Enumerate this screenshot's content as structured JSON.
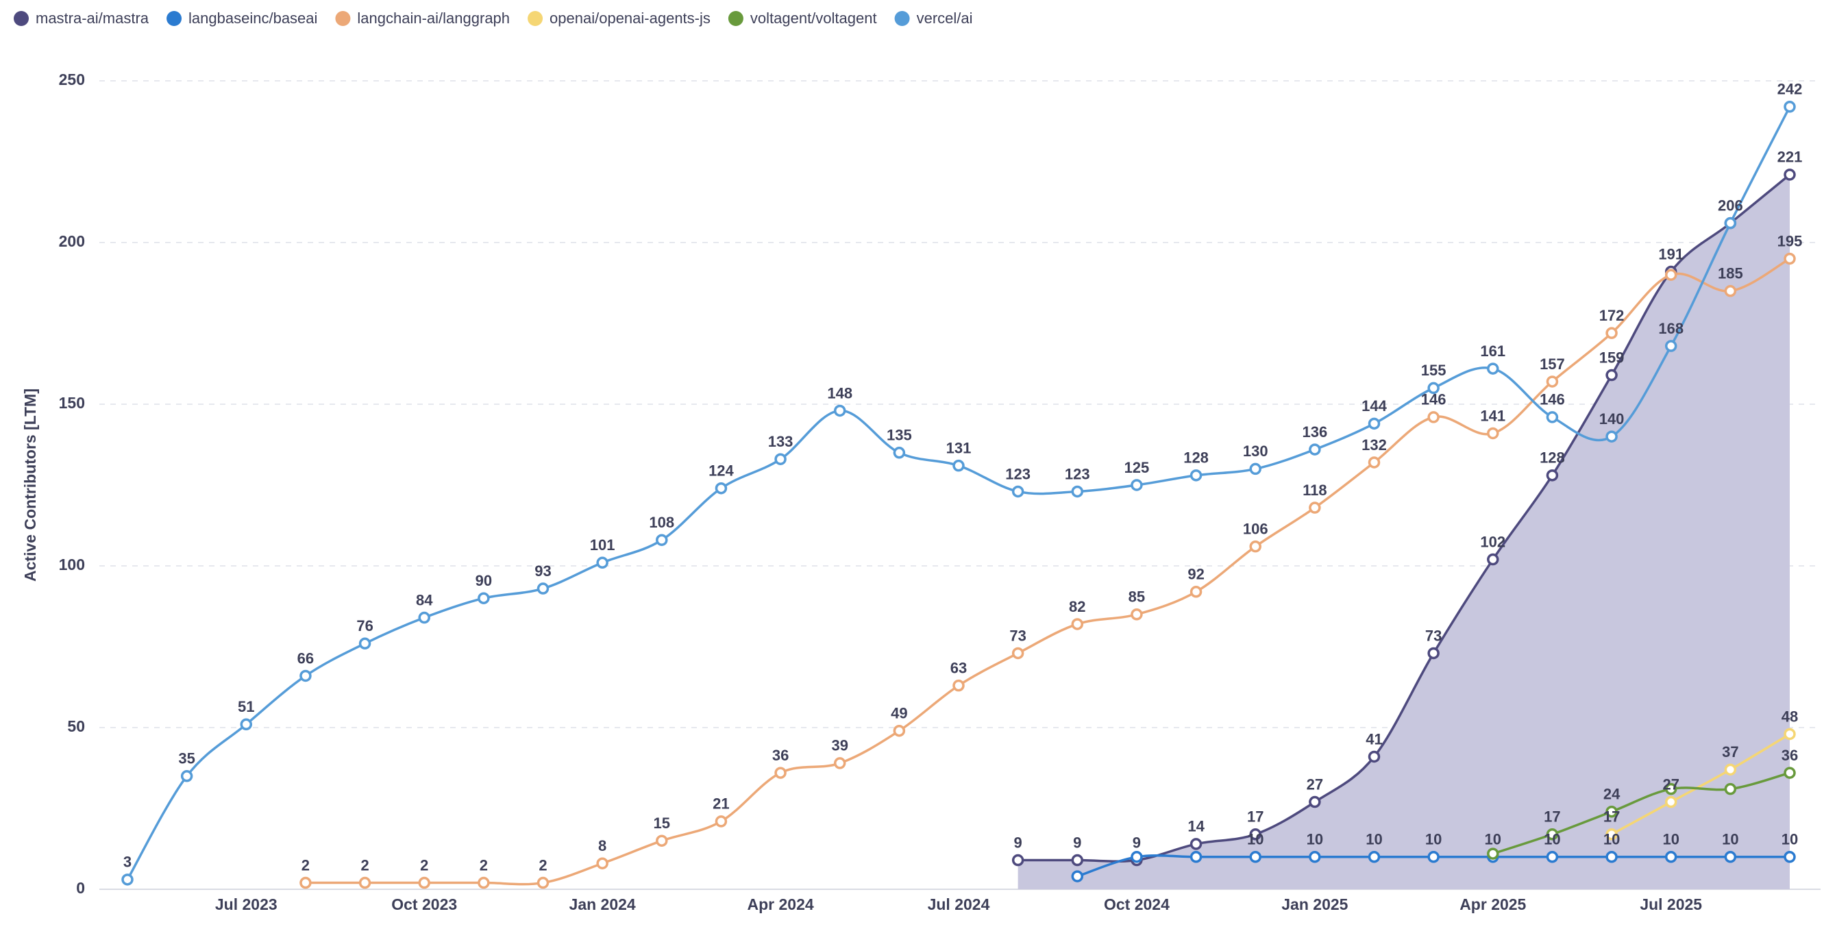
{
  "chart_data": {
    "type": "line",
    "y_label": "Active Contributors [LTM]",
    "categories": [
      null,
      null,
      "Jul 2023",
      null,
      null,
      "Oct 2023",
      null,
      null,
      "Jan 2024",
      null,
      null,
      "Apr 2024",
      null,
      null,
      "Jul 2024",
      null,
      null,
      "Oct 2024",
      null,
      null,
      "Jan 2025",
      null,
      null,
      "Apr 2025",
      null,
      null,
      "Jul 2025",
      null,
      null
    ],
    "ylim": [
      0,
      250
    ],
    "yticks": [
      0,
      50,
      100,
      150,
      200,
      250
    ],
    "grid": true,
    "legend": "top-left",
    "series": [
      {
        "name": "mastra-ai/mastra",
        "color": "#4e4a7e",
        "area_color": "#c8c7de",
        "values": [
          null,
          null,
          null,
          null,
          null,
          null,
          null,
          null,
          null,
          null,
          null,
          null,
          null,
          null,
          null,
          9,
          9,
          9,
          14,
          17,
          27,
          41,
          73,
          102,
          128,
          159,
          191,
          206,
          221
        ],
        "value_labels": [
          null,
          null,
          null,
          null,
          null,
          null,
          null,
          null,
          null,
          null,
          null,
          null,
          null,
          null,
          null,
          "9",
          "9",
          "9",
          "14",
          "17",
          "27",
          "41",
          "73",
          "102",
          "128",
          "159",
          "191",
          "206",
          "221"
        ]
      },
      {
        "name": "langbaseinc/baseai",
        "color": "#2b7bd0",
        "values": [
          null,
          null,
          null,
          null,
          null,
          null,
          null,
          null,
          null,
          null,
          null,
          null,
          null,
          null,
          null,
          null,
          4,
          10,
          10,
          10,
          10,
          10,
          10,
          10,
          10,
          10,
          10,
          10,
          10
        ],
        "value_labels": [
          null,
          null,
          null,
          null,
          null,
          null,
          null,
          null,
          null,
          null,
          null,
          null,
          null,
          null,
          null,
          null,
          null,
          null,
          null,
          "10",
          "10",
          "10",
          "10",
          "10",
          "10",
          "10",
          "10",
          "10",
          "10"
        ]
      },
      {
        "name": "langchain-ai/langgraph",
        "color": "#eca877",
        "values": [
          null,
          null,
          null,
          2,
          2,
          2,
          2,
          2,
          8,
          15,
          21,
          36,
          39,
          49,
          63,
          73,
          82,
          85,
          92,
          106,
          118,
          132,
          146,
          141,
          157,
          172,
          190,
          185,
          195
        ],
        "value_labels": [
          null,
          null,
          null,
          "2",
          "2",
          "2",
          "2",
          "2",
          "8",
          "15",
          "21",
          "36",
          "39",
          "49",
          "63",
          "73",
          "82",
          "85",
          "92",
          "106",
          "118",
          "132",
          "146",
          "141",
          "157",
          "172",
          null,
          "185",
          "195"
        ]
      },
      {
        "name": "openai/openai-agents-js",
        "color": "#f5d674",
        "values": [
          null,
          null,
          null,
          null,
          null,
          null,
          null,
          null,
          null,
          null,
          null,
          null,
          null,
          null,
          null,
          null,
          null,
          null,
          null,
          null,
          null,
          null,
          null,
          null,
          null,
          17,
          27,
          37,
          48
        ],
        "value_labels": [
          null,
          null,
          null,
          null,
          null,
          null,
          null,
          null,
          null,
          null,
          null,
          null,
          null,
          null,
          null,
          null,
          null,
          null,
          null,
          null,
          null,
          null,
          null,
          null,
          null,
          "17",
          "27",
          "37",
          "48"
        ]
      },
      {
        "name": "voltagent/voltagent",
        "color": "#689a3c",
        "values": [
          null,
          null,
          null,
          null,
          null,
          null,
          null,
          null,
          null,
          null,
          null,
          null,
          null,
          null,
          null,
          null,
          null,
          null,
          null,
          null,
          null,
          null,
          null,
          11,
          17,
          24,
          31,
          31,
          36
        ],
        "value_labels": [
          null,
          null,
          null,
          null,
          null,
          null,
          null,
          null,
          null,
          null,
          null,
          null,
          null,
          null,
          null,
          null,
          null,
          null,
          null,
          null,
          null,
          null,
          null,
          null,
          "17",
          "24",
          null,
          null,
          "36"
        ]
      },
      {
        "name": "vercel/ai",
        "color": "#559cd8",
        "values": [
          3,
          35,
          51,
          66,
          76,
          84,
          90,
          93,
          101,
          108,
          124,
          133,
          148,
          135,
          131,
          123,
          123,
          125,
          128,
          130,
          136,
          144,
          155,
          161,
          146,
          140,
          168,
          206,
          242
        ],
        "value_labels": [
          "3",
          "35",
          "51",
          "66",
          "76",
          "84",
          "90",
          "93",
          "101",
          "108",
          "124",
          "133",
          "148",
          "135",
          "131",
          "123",
          "123",
          "125",
          "128",
          "130",
          "136",
          "144",
          "155",
          "161",
          "146",
          "140",
          "168",
          null,
          "242"
        ]
      }
    ]
  }
}
